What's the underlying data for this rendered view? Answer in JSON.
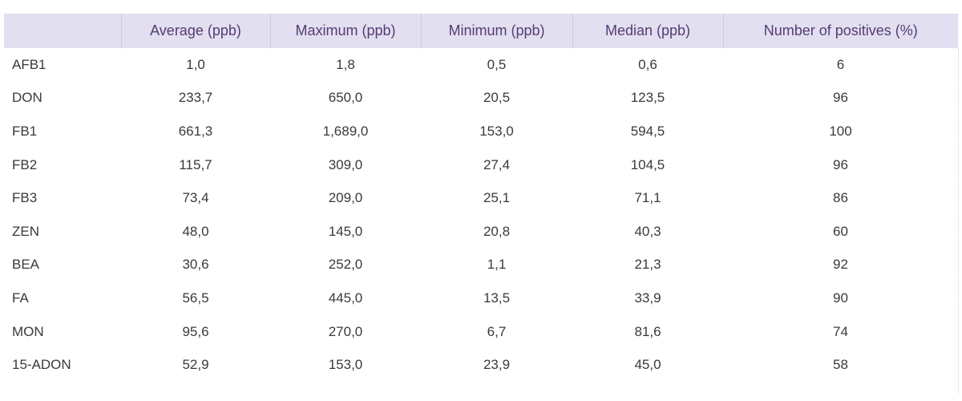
{
  "table": {
    "headers": [
      "",
      "Average (ppb)",
      "Maximum (ppb)",
      "Minimum (ppb)",
      "Median (ppb)",
      "Number of positives (%)"
    ],
    "rows": [
      {
        "label": "AFB1",
        "values": [
          "1,0",
          "1,8",
          "0,5",
          "0,6",
          "6"
        ]
      },
      {
        "label": "DON",
        "values": [
          "233,7",
          "650,0",
          "20,5",
          "123,5",
          "96"
        ]
      },
      {
        "label": "FB1",
        "values": [
          "661,3",
          "1,689,0",
          "153,0",
          "594,5",
          "100"
        ]
      },
      {
        "label": "FB2",
        "values": [
          "115,7",
          "309,0",
          "27,4",
          "104,5",
          "96"
        ]
      },
      {
        "label": "FB3",
        "values": [
          "73,4",
          "209,0",
          "25,1",
          "71,1",
          "86"
        ]
      },
      {
        "label": "ZEN",
        "values": [
          "48,0",
          "145,0",
          "20,8",
          "40,3",
          "60"
        ]
      },
      {
        "label": "BEA",
        "values": [
          "30,6",
          "252,0",
          "1,1",
          "21,3",
          "92"
        ]
      },
      {
        "label": "FA",
        "values": [
          "56,5",
          "445,0",
          "13,5",
          "33,9",
          "90"
        ]
      },
      {
        "label": "MON",
        "values": [
          "95,6",
          "270,0",
          "6,7",
          "81,6",
          "74"
        ]
      },
      {
        "label": "15-ADON",
        "values": [
          "52,9",
          "153,0",
          "23,9",
          "45,0",
          "58"
        ]
      }
    ]
  },
  "colors": {
    "header_background": "#e2dff0",
    "header_text": "#553c73",
    "body_text": "#3a3a3a"
  }
}
